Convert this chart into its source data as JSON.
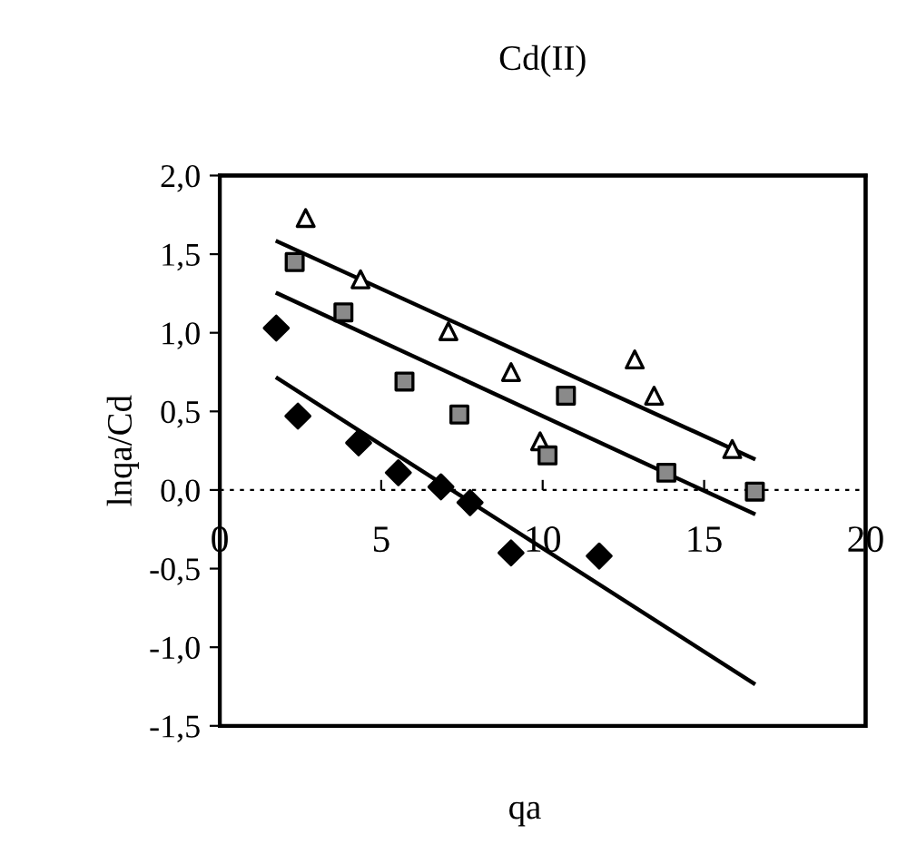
{
  "chart_data": {
    "type": "scatter",
    "title": "Cd(II)",
    "xlabel": "qa",
    "ylabel": "lnqa/Cd",
    "xlim": [
      0,
      20
    ],
    "xticks": [
      0,
      5,
      10,
      15,
      20
    ],
    "ylim": [
      -1.5,
      2.0
    ],
    "yticks": [
      {
        "value": -1.5,
        "label": "-1,5"
      },
      {
        "value": -1.0,
        "label": "-1,0"
      },
      {
        "value": -0.5,
        "label": "-0,5"
      },
      {
        "value": 0.0,
        "label": "0,0"
      },
      {
        "value": 0.5,
        "label": "0,5"
      },
      {
        "value": 1.0,
        "label": "1,0"
      },
      {
        "value": 1.5,
        "label": "1,5"
      },
      {
        "value": 2.0,
        "label": "2,0"
      }
    ],
    "grid": false,
    "legend": false,
    "ref_lines": [
      {
        "axis": "y",
        "value": 0,
        "line_style": "dashed",
        "color": "#000000"
      }
    ],
    "series": [
      {
        "marker": "triangle",
        "color": "#ffffff",
        "x": [
          2.66,
          4.36,
          7.08,
          9.02,
          9.92,
          12.85,
          13.45,
          15.87
        ],
        "values": [
          1.73,
          1.34,
          1.01,
          0.75,
          0.31,
          0.83,
          0.6,
          0.26
        ]
      },
      {
        "marker": "square",
        "color": "#8a8a8a",
        "x": [
          2.32,
          3.83,
          5.72,
          7.42,
          10.15,
          10.72,
          13.83,
          16.57
        ],
        "values": [
          1.45,
          1.13,
          0.69,
          0.48,
          0.22,
          0.6,
          0.11,
          -0.01
        ]
      },
      {
        "marker": "diamond",
        "color": "#000000",
        "x": [
          1.75,
          2.42,
          4.3,
          5.53,
          6.85,
          7.75,
          9.02,
          11.75
        ],
        "values": [
          1.03,
          0.47,
          0.3,
          0.11,
          0.02,
          -0.08,
          -0.4,
          -0.42
        ]
      },
      {
        "type": "line",
        "marker": "none",
        "color": "#000000",
        "x": [
          1.79,
          16.53
        ],
        "values": [
          1.58,
          0.2
        ]
      },
      {
        "type": "line",
        "marker": "none",
        "color": "#000000",
        "x": [
          1.79,
          16.53
        ],
        "values": [
          1.25,
          -0.15
        ]
      },
      {
        "type": "line",
        "marker": "none",
        "color": "#000000",
        "x": [
          1.79,
          16.53
        ],
        "values": [
          0.71,
          -1.23
        ]
      }
    ]
  }
}
